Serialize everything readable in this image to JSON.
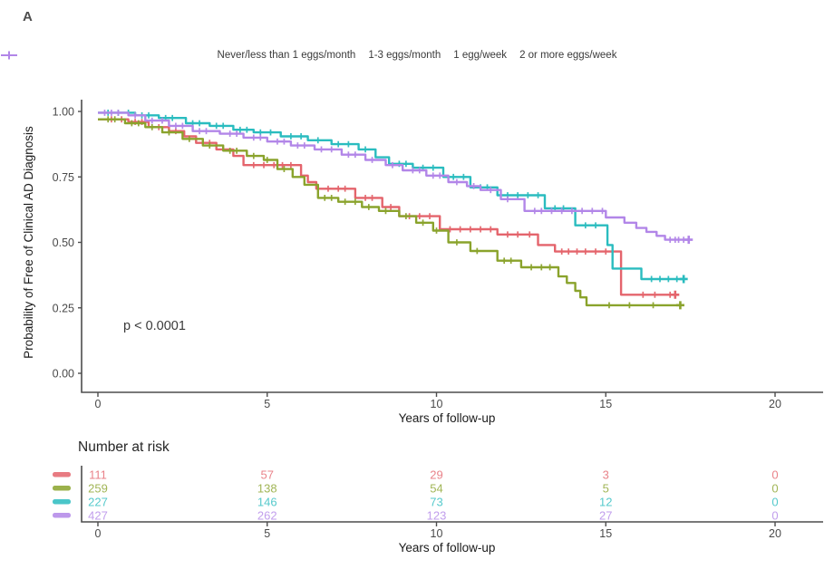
{
  "panel_label": "A",
  "annotation": {
    "p_value": "p < 0.0001"
  },
  "chart_data": {
    "type": "line",
    "subtype": "kaplan-meier-step",
    "title": "",
    "xlabel": "Years of follow-up",
    "ylabel": "Probability of Free of Clinical AD Diagnosis",
    "xlim": [
      0,
      20
    ],
    "xticks": [
      0,
      5,
      10,
      15,
      20
    ],
    "ylim": [
      0,
      1
    ],
    "yticks": [
      "0.00",
      "0.25",
      "0.50",
      "0.75",
      "1.00"
    ],
    "grid": false,
    "legend_position": "top",
    "p_value": "p < 0.0001",
    "series": [
      {
        "name": "Never/less than 1 eggs/month",
        "color": "#E4646C",
        "steps": [
          [
            0,
            0.97
          ],
          [
            0.9,
            0.96
          ],
          [
            1.5,
            0.94
          ],
          [
            2.1,
            0.925
          ],
          [
            2.55,
            0.905
          ],
          [
            2.9,
            0.88
          ],
          [
            3.5,
            0.855
          ],
          [
            4.0,
            0.83
          ],
          [
            4.3,
            0.795
          ],
          [
            6.0,
            0.755
          ],
          [
            6.2,
            0.73
          ],
          [
            6.45,
            0.705
          ],
          [
            7.6,
            0.67
          ],
          [
            8.4,
            0.635
          ],
          [
            8.9,
            0.6
          ],
          [
            10.1,
            0.55
          ],
          [
            11.8,
            0.53
          ],
          [
            13.0,
            0.49
          ],
          [
            13.5,
            0.465
          ],
          [
            15.45,
            0.3
          ]
        ],
        "end_year": 17.05,
        "censor_years": [
          0.4,
          0.7,
          1.1,
          1.3,
          1.8,
          2.3,
          3.1,
          3.3,
          4.6,
          4.9,
          5.2,
          5.45,
          5.7,
          6.8,
          7.1,
          7.3,
          7.9,
          8.1,
          8.65,
          9.2,
          9.5,
          9.8,
          10.4,
          10.7,
          11.0,
          11.3,
          11.6,
          12.1,
          12.4,
          12.75,
          13.7,
          13.9,
          14.15,
          14.4,
          14.7,
          15.0,
          16.1,
          16.45,
          16.9
        ]
      },
      {
        "name": "1-3 eggs/month",
        "color": "#8AA32C",
        "steps": [
          [
            0,
            0.97
          ],
          [
            0.8,
            0.955
          ],
          [
            1.4,
            0.94
          ],
          [
            1.9,
            0.92
          ],
          [
            2.5,
            0.895
          ],
          [
            3.1,
            0.87
          ],
          [
            3.7,
            0.85
          ],
          [
            4.4,
            0.83
          ],
          [
            4.9,
            0.815
          ],
          [
            5.3,
            0.78
          ],
          [
            5.75,
            0.75
          ],
          [
            6.1,
            0.72
          ],
          [
            6.5,
            0.67
          ],
          [
            7.1,
            0.655
          ],
          [
            7.8,
            0.635
          ],
          [
            8.3,
            0.62
          ],
          [
            8.9,
            0.6
          ],
          [
            9.4,
            0.575
          ],
          [
            9.9,
            0.545
          ],
          [
            10.35,
            0.5
          ],
          [
            11.0,
            0.467
          ],
          [
            11.8,
            0.43
          ],
          [
            12.5,
            0.405
          ],
          [
            13.6,
            0.37
          ],
          [
            13.85,
            0.345
          ],
          [
            14.1,
            0.315
          ],
          [
            14.25,
            0.29
          ],
          [
            14.43,
            0.26
          ]
        ],
        "end_year": 17.2,
        "censor_years": [
          0.3,
          0.5,
          1.0,
          1.2,
          1.6,
          2.1,
          2.7,
          3.3,
          3.9,
          4.1,
          4.6,
          5.0,
          5.5,
          6.7,
          6.9,
          7.3,
          7.6,
          8.0,
          8.5,
          9.1,
          9.6,
          10.0,
          10.6,
          11.2,
          12.0,
          12.2,
          12.8,
          13.1,
          13.35,
          15.1,
          15.7,
          16.4
        ]
      },
      {
        "name": "1 egg/week",
        "color": "#2ABCBF",
        "steps": [
          [
            0,
            0.995
          ],
          [
            1.1,
            0.985
          ],
          [
            1.8,
            0.975
          ],
          [
            2.6,
            0.955
          ],
          [
            3.3,
            0.945
          ],
          [
            4.0,
            0.93
          ],
          [
            4.6,
            0.92
          ],
          [
            5.4,
            0.905
          ],
          [
            6.2,
            0.89
          ],
          [
            6.9,
            0.875
          ],
          [
            7.7,
            0.855
          ],
          [
            8.2,
            0.825
          ],
          [
            8.6,
            0.8
          ],
          [
            9.3,
            0.785
          ],
          [
            10.2,
            0.75
          ],
          [
            11.0,
            0.71
          ],
          [
            11.8,
            0.68
          ],
          [
            13.2,
            0.63
          ],
          [
            14.1,
            0.565
          ],
          [
            15.05,
            0.49
          ],
          [
            15.2,
            0.4
          ],
          [
            16.05,
            0.36
          ]
        ],
        "end_year": 17.3,
        "censor_years": [
          0.3,
          0.6,
          0.9,
          1.3,
          1.5,
          2.0,
          2.2,
          2.8,
          3.0,
          3.5,
          3.7,
          4.2,
          4.4,
          4.8,
          5.1,
          5.7,
          6.0,
          6.5,
          7.1,
          7.4,
          7.9,
          8.9,
          9.1,
          9.6,
          9.9,
          10.5,
          10.8,
          11.3,
          11.5,
          12.1,
          12.4,
          12.7,
          13.0,
          13.5,
          13.75,
          14.4,
          14.7,
          16.35,
          16.6,
          16.85,
          17.1
        ]
      },
      {
        "name": "2 or more eggs/week",
        "color": "#B286E8",
        "steps": [
          [
            0,
            0.995
          ],
          [
            0.9,
            0.985
          ],
          [
            1.4,
            0.965
          ],
          [
            2.1,
            0.945
          ],
          [
            2.8,
            0.925
          ],
          [
            3.6,
            0.915
          ],
          [
            4.3,
            0.9
          ],
          [
            5.0,
            0.885
          ],
          [
            5.7,
            0.87
          ],
          [
            6.4,
            0.855
          ],
          [
            7.2,
            0.835
          ],
          [
            7.9,
            0.815
          ],
          [
            8.5,
            0.795
          ],
          [
            9.0,
            0.775
          ],
          [
            9.7,
            0.755
          ],
          [
            10.35,
            0.73
          ],
          [
            10.9,
            0.715
          ],
          [
            11.3,
            0.7
          ],
          [
            11.9,
            0.665
          ],
          [
            12.6,
            0.62
          ],
          [
            15.0,
            0.595
          ],
          [
            15.55,
            0.575
          ],
          [
            15.9,
            0.555
          ],
          [
            16.2,
            0.54
          ],
          [
            16.5,
            0.525
          ],
          [
            16.75,
            0.51
          ]
        ],
        "end_year": 17.45,
        "censor_years": [
          0.2,
          0.4,
          0.6,
          1.1,
          1.6,
          1.9,
          2.3,
          2.5,
          3.0,
          3.2,
          3.9,
          4.1,
          4.6,
          4.8,
          5.3,
          5.5,
          5.9,
          6.1,
          6.6,
          6.9,
          7.4,
          7.6,
          8.1,
          8.7,
          9.3,
          9.5,
          9.9,
          10.1,
          10.6,
          11.1,
          11.6,
          12.1,
          12.9,
          13.1,
          13.4,
          13.7,
          14.0,
          14.3,
          14.6,
          14.9,
          16.9,
          17.05,
          17.15,
          17.3
        ]
      }
    ]
  },
  "risk_table": {
    "title": "Number at risk",
    "xlabel": "Years of follow-up",
    "xticks": [
      0,
      5,
      10,
      15,
      20
    ],
    "rows": [
      {
        "name": "Never/less than 1 eggs/month",
        "color": "#E4646C",
        "values": [
          111,
          57,
          29,
          3,
          0
        ]
      },
      {
        "name": "1-3 eggs/month",
        "color": "#8AA32C",
        "values": [
          259,
          138,
          54,
          5,
          0
        ]
      },
      {
        "name": "1 egg/week",
        "color": "#2ABCBF",
        "values": [
          227,
          146,
          73,
          12,
          0
        ]
      },
      {
        "name": "2 or more eggs/week",
        "color": "#B286E8",
        "values": [
          427,
          262,
          123,
          27,
          0
        ]
      }
    ]
  }
}
